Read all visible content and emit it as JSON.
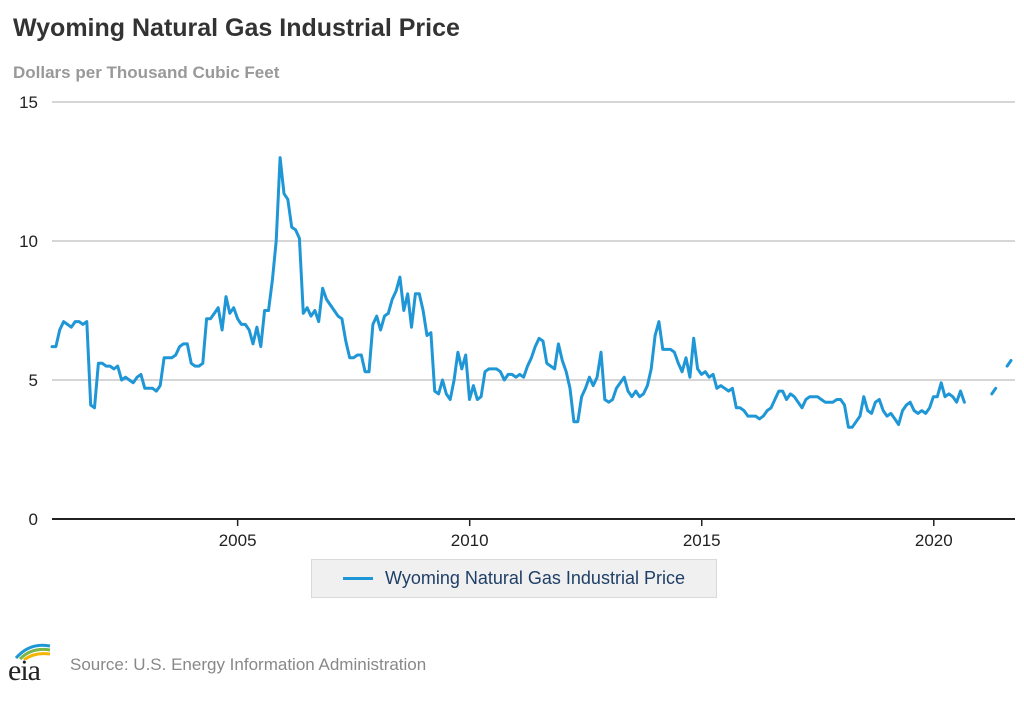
{
  "header": {
    "title": "Wyoming Natural Gas Industrial Price",
    "subtitle": "Dollars per Thousand Cubic Feet"
  },
  "legend": {
    "label": "Wyoming Natural Gas Industrial Price"
  },
  "footer": {
    "logo_text": "eia",
    "source": "Source: U.S. Energy Information Administration"
  },
  "colors": {
    "series": "#1f97d6",
    "grid": "#c9c9c9",
    "axis": "#222222",
    "tick_text": "#222222"
  },
  "chart_data": {
    "type": "line",
    "title": "Wyoming Natural Gas Industrial Price",
    "ylabel": "Dollars per Thousand Cubic Feet",
    "xlabel": "",
    "xlim": [
      2001.0,
      2021.75
    ],
    "ylim": [
      0,
      15
    ],
    "xticks": [
      2005,
      2010,
      2015,
      2020
    ],
    "yticks": [
      0,
      5,
      10,
      15
    ],
    "grid": true,
    "legend_position": "bottom-center",
    "series": [
      {
        "name": "Wyoming Natural Gas Industrial Price",
        "segments": [
          {
            "start": 2001.0,
            "step": 0.0833,
            "values": [
              6.2,
              6.2,
              6.8,
              7.1,
              7.0,
              6.9,
              7.1,
              7.1,
              7.0,
              7.1,
              4.1,
              4.0,
              5.6,
              5.6,
              5.5,
              5.5,
              5.4,
              5.5,
              5.0,
              5.1,
              5.0,
              4.9,
              5.1,
              5.2,
              4.7,
              4.7,
              4.7,
              4.6,
              4.8,
              5.8,
              5.8,
              5.8,
              5.9,
              6.2,
              6.3,
              6.3,
              5.6,
              5.5,
              5.5,
              5.6,
              7.2,
              7.2,
              7.4,
              7.6,
              6.8,
              8.0,
              7.4,
              7.6,
              7.2,
              7.0,
              7.0,
              6.8,
              6.3,
              6.9,
              6.2,
              7.5,
              7.5,
              8.6,
              10.0,
              13.0,
              11.7,
              11.5,
              10.5,
              10.4,
              10.1,
              7.4,
              7.6,
              7.3,
              7.5,
              7.1,
              8.3,
              7.9,
              7.7,
              7.5,
              7.3,
              7.2,
              6.4,
              5.8,
              5.8,
              5.9,
              5.9,
              5.3,
              5.3,
              7.0,
              7.3,
              6.8,
              7.3,
              7.4,
              7.9,
              8.2,
              8.7,
              7.5,
              8.1,
              6.9,
              8.1,
              8.1,
              7.5,
              6.6,
              6.7,
              4.6,
              4.5,
              5.0,
              4.5,
              4.3,
              5.0,
              6.0,
              5.4,
              5.9,
              4.3,
              4.8,
              4.3,
              4.4,
              5.3,
              5.4,
              5.4,
              5.4,
              5.3,
              5.0,
              5.2,
              5.2,
              5.1,
              5.2,
              5.1,
              5.5,
              5.8,
              6.2,
              6.5,
              6.4,
              5.6,
              5.5,
              5.4,
              6.3,
              5.7,
              5.3,
              4.7,
              3.5,
              3.5,
              4.4,
              4.7,
              5.1,
              4.8,
              5.1,
              6.0,
              4.3,
              4.2,
              4.3,
              4.7,
              4.9,
              5.1,
              4.6,
              4.4,
              4.6,
              4.4,
              4.5,
              4.8,
              5.4,
              6.6,
              7.1,
              6.1,
              6.1,
              6.1,
              6.0,
              5.6,
              5.3,
              5.8,
              5.1,
              6.5,
              5.4,
              5.2,
              5.3,
              5.1,
              5.2,
              4.7,
              4.8,
              4.7,
              4.6,
              4.7,
              4.0,
              4.0,
              3.9,
              3.7,
              3.7,
              3.7,
              3.6,
              3.7,
              3.9,
              4.0,
              4.3,
              4.6,
              4.6,
              4.3,
              4.5,
              4.4,
              4.2,
              4.0,
              4.3,
              4.4,
              4.4,
              4.4,
              4.3,
              4.2,
              4.2,
              4.2,
              4.3,
              4.3,
              4.1,
              3.3,
              3.3,
              3.5,
              3.7,
              4.4,
              3.9,
              3.8,
              4.2,
              4.3,
              3.9,
              3.7,
              3.8,
              3.6,
              3.4,
              3.9,
              4.1,
              4.2,
              3.9,
              3.8,
              3.9,
              3.8,
              4.0,
              4.4,
              4.4,
              4.9,
              4.4,
              4.5,
              4.4,
              4.2,
              4.6,
              4.2
            ]
          },
          {
            "start": 2021.25,
            "step": 0.0833,
            "values": [
              4.5,
              4.7
            ]
          },
          {
            "start": 2021.58,
            "step": 0.0833,
            "values": [
              5.5,
              5.7
            ]
          }
        ]
      }
    ]
  }
}
